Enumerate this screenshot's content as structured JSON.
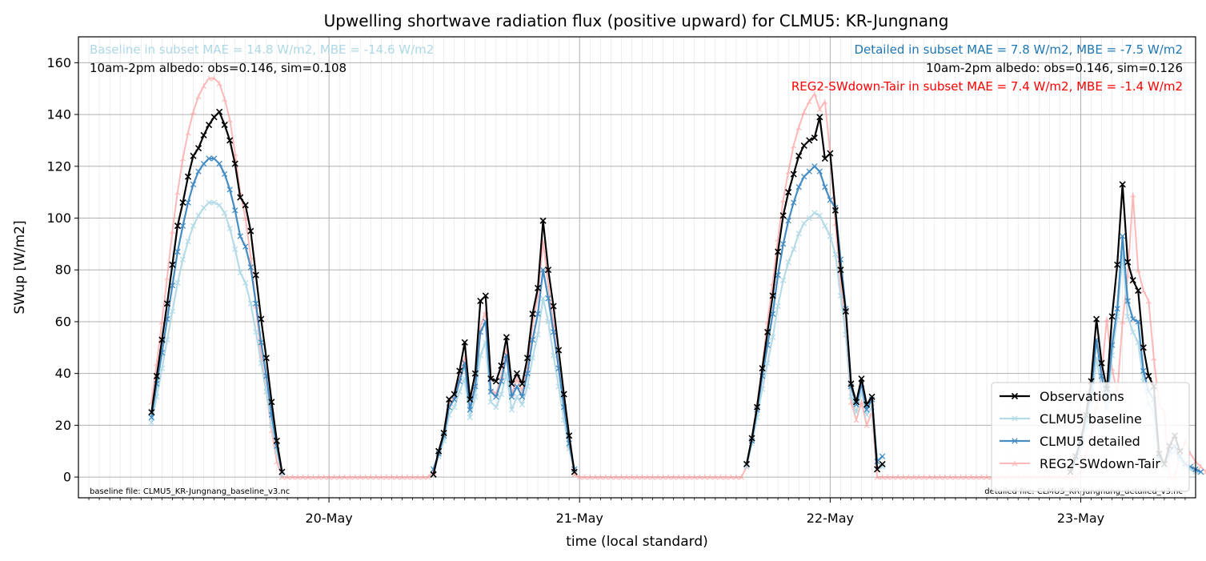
{
  "chart_data": {
    "type": "line",
    "title": "Upwelling shortwave radiation flux (positive upward) for CLMU5: KR-Jungnang",
    "xlabel": "time (local standard)",
    "ylabel": "SWup [W/m2]",
    "ylim": [
      -8,
      170
    ],
    "yticks": [
      0,
      20,
      40,
      60,
      80,
      100,
      120,
      140,
      160
    ],
    "x_start": "19-May 07:00",
    "x_step_hours": 0.5,
    "x_range": [
      "19-May 00:00",
      "23-May 11:00"
    ],
    "xtick_labels": [
      "20-May",
      "21-May",
      "22-May",
      "23-May"
    ],
    "xtick_days": [
      1,
      2,
      3,
      4
    ],
    "grid": true,
    "legend_position": "lower right",
    "annotations": {
      "baseline_stats": "Baseline in subset MAE = 14.8 W/m2, MBE = -14.6 W/m2",
      "baseline_albedo": "10am-2pm albedo: obs=0.146, sim=0.108",
      "detailed_stats": "Detailed in subset MAE = 7.8 W/m2, MBE = -7.5 W/m2",
      "detailed_albedo": "10am-2pm albedo: obs=0.146, sim=0.126",
      "reg2_stats": "REG2-SWdown-Tair in subset MAE = 7.4 W/m2, MBE = -1.4 W/m2",
      "baseline_file": "baseline file: CLMU5_KR-Jungnang_baseline_v3.nc",
      "detailed_file": "detailed file: CLMU5_KR-Jungnang_detailed_v3.nc"
    },
    "series": [
      {
        "name": "Observations",
        "color": "#000000",
        "values": [
          25,
          39,
          53,
          67,
          82,
          97,
          106,
          116,
          124,
          127,
          132,
          136,
          139,
          141,
          136,
          130,
          121,
          108,
          105,
          95,
          78,
          61,
          46,
          29,
          14,
          2,
          null,
          null,
          null,
          null,
          null,
          null,
          null,
          null,
          null,
          null,
          null,
          null,
          null,
          null,
          null,
          null,
          null,
          null,
          null,
          null,
          null,
          null,
          null,
          null,
          null,
          null,
          null,
          null,
          1,
          10,
          17,
          30,
          32,
          41,
          52,
          30,
          40,
          68,
          70,
          38,
          37,
          43,
          54,
          36,
          40,
          36,
          46,
          63,
          73,
          99,
          80,
          66,
          49,
          32,
          16,
          2,
          null,
          null,
          null,
          null,
          null,
          null,
          null,
          null,
          null,
          null,
          null,
          null,
          null,
          null,
          null,
          null,
          null,
          null,
          null,
          null,
          null,
          null,
          null,
          null,
          null,
          null,
          null,
          null,
          null,
          null,
          null,
          null,
          5,
          15,
          27,
          42,
          56,
          70,
          87,
          101,
          110,
          117,
          124,
          128,
          130,
          131,
          139,
          123,
          125,
          103,
          80,
          64,
          36,
          29,
          38,
          28,
          31,
          3,
          5,
          null,
          null,
          null,
          null,
          null,
          null,
          null,
          null,
          null,
          null,
          null,
          null,
          null,
          null,
          null,
          null,
          null,
          null,
          null,
          null,
          null,
          null,
          null,
          null,
          null,
          null,
          null,
          null,
          null,
          null,
          null,
          null,
          null,
          null,
          null,
          2,
          8,
          14,
          24,
          37,
          61,
          44,
          34,
          62,
          82,
          113,
          83,
          76,
          72,
          50,
          39,
          35,
          9,
          5,
          12,
          16,
          10,
          null,
          null,
          null,
          null,
          null,
          null,
          null,
          null,
          null,
          null,
          null,
          null,
          null,
          null,
          null,
          null,
          null,
          null,
          null,
          null,
          null,
          null,
          null,
          null,
          null,
          null,
          null,
          null,
          null,
          null
        ]
      },
      {
        "name": "CLMU5 baseline",
        "color": "#add8e6",
        "values": [
          21,
          31,
          42,
          53,
          64,
          75,
          84,
          91,
          97,
          101,
          104,
          106,
          106,
          105,
          102,
          96,
          88,
          79,
          75,
          67,
          56,
          44,
          33,
          20,
          10,
          1,
          null,
          null,
          null,
          null,
          null,
          null,
          null,
          null,
          null,
          null,
          null,
          null,
          null,
          null,
          null,
          null,
          null,
          null,
          null,
          null,
          null,
          null,
          null,
          null,
          null,
          null,
          null,
          null,
          1,
          8,
          14,
          24,
          27,
          33,
          38,
          23,
          31,
          47,
          52,
          29,
          27,
          32,
          40,
          26,
          31,
          28,
          35,
          46,
          55,
          69,
          60,
          47,
          35,
          22,
          11,
          2,
          null,
          null,
          null,
          null,
          null,
          null,
          null,
          null,
          null,
          null,
          null,
          null,
          null,
          null,
          null,
          null,
          null,
          null,
          null,
          null,
          null,
          null,
          null,
          null,
          null,
          null,
          null,
          null,
          null,
          null,
          null,
          null,
          4,
          13,
          23,
          34,
          44,
          54,
          66,
          76,
          83,
          88,
          94,
          98,
          100,
          102,
          101,
          97,
          93,
          86,
          70,
          55,
          31,
          25,
          33,
          24,
          27,
          3,
          4,
          null,
          null,
          null,
          null,
          null,
          null,
          null,
          null,
          null,
          null,
          null,
          null,
          null,
          null,
          null,
          null,
          null,
          null,
          null,
          null,
          null,
          null,
          null,
          null,
          null,
          null,
          null,
          null,
          null,
          null,
          null,
          null,
          null,
          null,
          null,
          2,
          6,
          11,
          19,
          28,
          46,
          34,
          26,
          47,
          62,
          86,
          62,
          56,
          52,
          37,
          28,
          25,
          6,
          4,
          8,
          10,
          7,
          4,
          3,
          2,
          2,
          null,
          null,
          null,
          null,
          null,
          null,
          null,
          null,
          null,
          null,
          null,
          null,
          null,
          null,
          null,
          null,
          null,
          null,
          null,
          null,
          null,
          null,
          null,
          null,
          null,
          null
        ]
      },
      {
        "name": "CLMU5 detailed",
        "color": "#3a86c0",
        "values": [
          23,
          36,
          48,
          61,
          74,
          87,
          97,
          106,
          113,
          118,
          121,
          123,
          123,
          121,
          117,
          111,
          103,
          93,
          89,
          81,
          67,
          52,
          39,
          24,
          12,
          2,
          null,
          null,
          null,
          null,
          null,
          null,
          null,
          null,
          null,
          null,
          null,
          null,
          null,
          null,
          null,
          null,
          null,
          null,
          null,
          null,
          null,
          null,
          null,
          null,
          null,
          null,
          null,
          null,
          3,
          9,
          16,
          27,
          30,
          37,
          44,
          26,
          35,
          56,
          60,
          33,
          31,
          37,
          47,
          31,
          35,
          31,
          40,
          53,
          63,
          80,
          69,
          56,
          42,
          27,
          13,
          3,
          null,
          null,
          null,
          null,
          null,
          null,
          null,
          null,
          null,
          null,
          null,
          null,
          null,
          null,
          null,
          null,
          null,
          null,
          null,
          null,
          null,
          null,
          null,
          null,
          null,
          null,
          null,
          null,
          null,
          null,
          null,
          null,
          5,
          14,
          26,
          39,
          51,
          63,
          78,
          90,
          99,
          106,
          112,
          116,
          118,
          120,
          118,
          112,
          107,
          104,
          84,
          65,
          35,
          28,
          36,
          26,
          30,
          6,
          8,
          null,
          null,
          null,
          null,
          null,
          null,
          null,
          null,
          null,
          null,
          null,
          null,
          null,
          null,
          null,
          null,
          null,
          null,
          null,
          null,
          null,
          null,
          null,
          null,
          null,
          null,
          null,
          null,
          null,
          null,
          null,
          null,
          null,
          null,
          null,
          2,
          7,
          13,
          22,
          33,
          53,
          39,
          30,
          51,
          65,
          93,
          68,
          61,
          60,
          41,
          33,
          30,
          8,
          5,
          10,
          12,
          8,
          5,
          4,
          3,
          2,
          null,
          null,
          null,
          null,
          null,
          null,
          null,
          null,
          null,
          null,
          null,
          null,
          null,
          null,
          null,
          null,
          null,
          null,
          null,
          null,
          null,
          null,
          null,
          null,
          null,
          null
        ]
      },
      {
        "name": "REG2-SWdown-Tair",
        "color": "#ff8a8a",
        "values": [
          29,
          44,
          60,
          77,
          95,
          110,
          123,
          133,
          141,
          147,
          151,
          154,
          154,
          152,
          146,
          138,
          125,
          110,
          100,
          85,
          66,
          47,
          33,
          18,
          6,
          0,
          0,
          0,
          0,
          0,
          0,
          0,
          0,
          0,
          0,
          0,
          0,
          0,
          0,
          0,
          0,
          0,
          0,
          0,
          0,
          0,
          0,
          0,
          0,
          0,
          0,
          0,
          0,
          0,
          2,
          9,
          16,
          28,
          31,
          38,
          46,
          26,
          36,
          58,
          64,
          34,
          32,
          39,
          49,
          32,
          38,
          33,
          43,
          59,
          70,
          91,
          74,
          59,
          42,
          27,
          12,
          1,
          0,
          0,
          0,
          0,
          0,
          0,
          0,
          0,
          0,
          0,
          0,
          0,
          0,
          0,
          0,
          0,
          0,
          0,
          0,
          0,
          0,
          0,
          0,
          0,
          0,
          0,
          0,
          0,
          0,
          0,
          0,
          0,
          4,
          15,
          28,
          43,
          60,
          75,
          92,
          107,
          118,
          128,
          135,
          141,
          145,
          148,
          142,
          145,
          125,
          98,
          75,
          55,
          29,
          22,
          29,
          20,
          25,
          0,
          0,
          0,
          0,
          0,
          0,
          0,
          0,
          0,
          0,
          0,
          0,
          0,
          0,
          0,
          0,
          0,
          0,
          0,
          0,
          0,
          0,
          0,
          0,
          0,
          0,
          0,
          0,
          0,
          0,
          0,
          0,
          0,
          0,
          0,
          0,
          0,
          0,
          0,
          2,
          9,
          16,
          27,
          40,
          61,
          42,
          32,
          60,
          78,
          109,
          80,
          72,
          68,
          46,
          28,
          25,
          0,
          0,
          8,
          14,
          9,
          6,
          4,
          2,
          1,
          0,
          0,
          0,
          0,
          0,
          0,
          0,
          0,
          0,
          0,
          0,
          0,
          0,
          0,
          0,
          0,
          0,
          0,
          0,
          0,
          0,
          0,
          0,
          0,
          0,
          0,
          0,
          0
        ]
      }
    ]
  }
}
